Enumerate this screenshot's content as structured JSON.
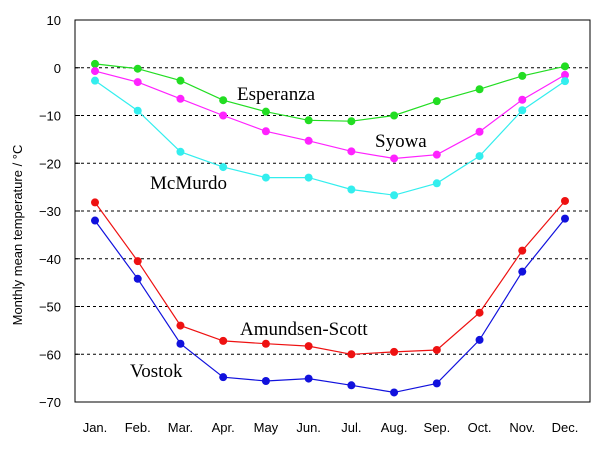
{
  "chart_data": {
    "type": "line",
    "title": "",
    "xlabel": "",
    "ylabel": "Monthly mean temperature / °C",
    "ylim": [
      -70,
      10
    ],
    "yticks": [
      10,
      0,
      -10,
      -20,
      -30,
      -40,
      -50,
      -60,
      -70
    ],
    "grid": "horizontal dashed",
    "legend": "none (series labeled inline)",
    "categories": [
      "Jan.",
      "Feb.",
      "Mar.",
      "Apr.",
      "May",
      "Jun.",
      "Jul.",
      "Aug.",
      "Sep.",
      "Oct.",
      "Nov.",
      "Dec."
    ],
    "series": [
      {
        "name": "Esperanza",
        "color": "#22dd22",
        "values": [
          0.8,
          -0.2,
          -2.7,
          -6.8,
          -9.2,
          -11.0,
          -11.2,
          -10.0,
          -7.0,
          -4.5,
          -1.7,
          0.3
        ]
      },
      {
        "name": "Syowa",
        "color": "#ff22ff",
        "values": [
          -0.7,
          -3.0,
          -6.5,
          -10.0,
          -13.3,
          -15.3,
          -17.5,
          -19.0,
          -18.2,
          -13.4,
          -6.7,
          -1.5
        ]
      },
      {
        "name": "McMurdo",
        "color": "#33eeee",
        "values": [
          -2.7,
          -9.0,
          -17.6,
          -20.8,
          -23.0,
          -23.0,
          -25.5,
          -26.7,
          -24.2,
          -18.5,
          -8.9,
          -2.8
        ]
      },
      {
        "name": "Amundsen-Scott",
        "color": "#ee1111",
        "values": [
          -28.2,
          -40.5,
          -54.0,
          -57.2,
          -57.8,
          -58.3,
          -60.0,
          -59.5,
          -59.1,
          -51.3,
          -38.3,
          -27.9
        ]
      },
      {
        "name": "Vostok",
        "color": "#1111dd",
        "values": [
          -32.0,
          -44.2,
          -57.8,
          -64.8,
          -65.6,
          -65.1,
          -66.5,
          -68.0,
          -66.1,
          -57.0,
          -42.7,
          -31.6
        ]
      }
    ]
  }
}
